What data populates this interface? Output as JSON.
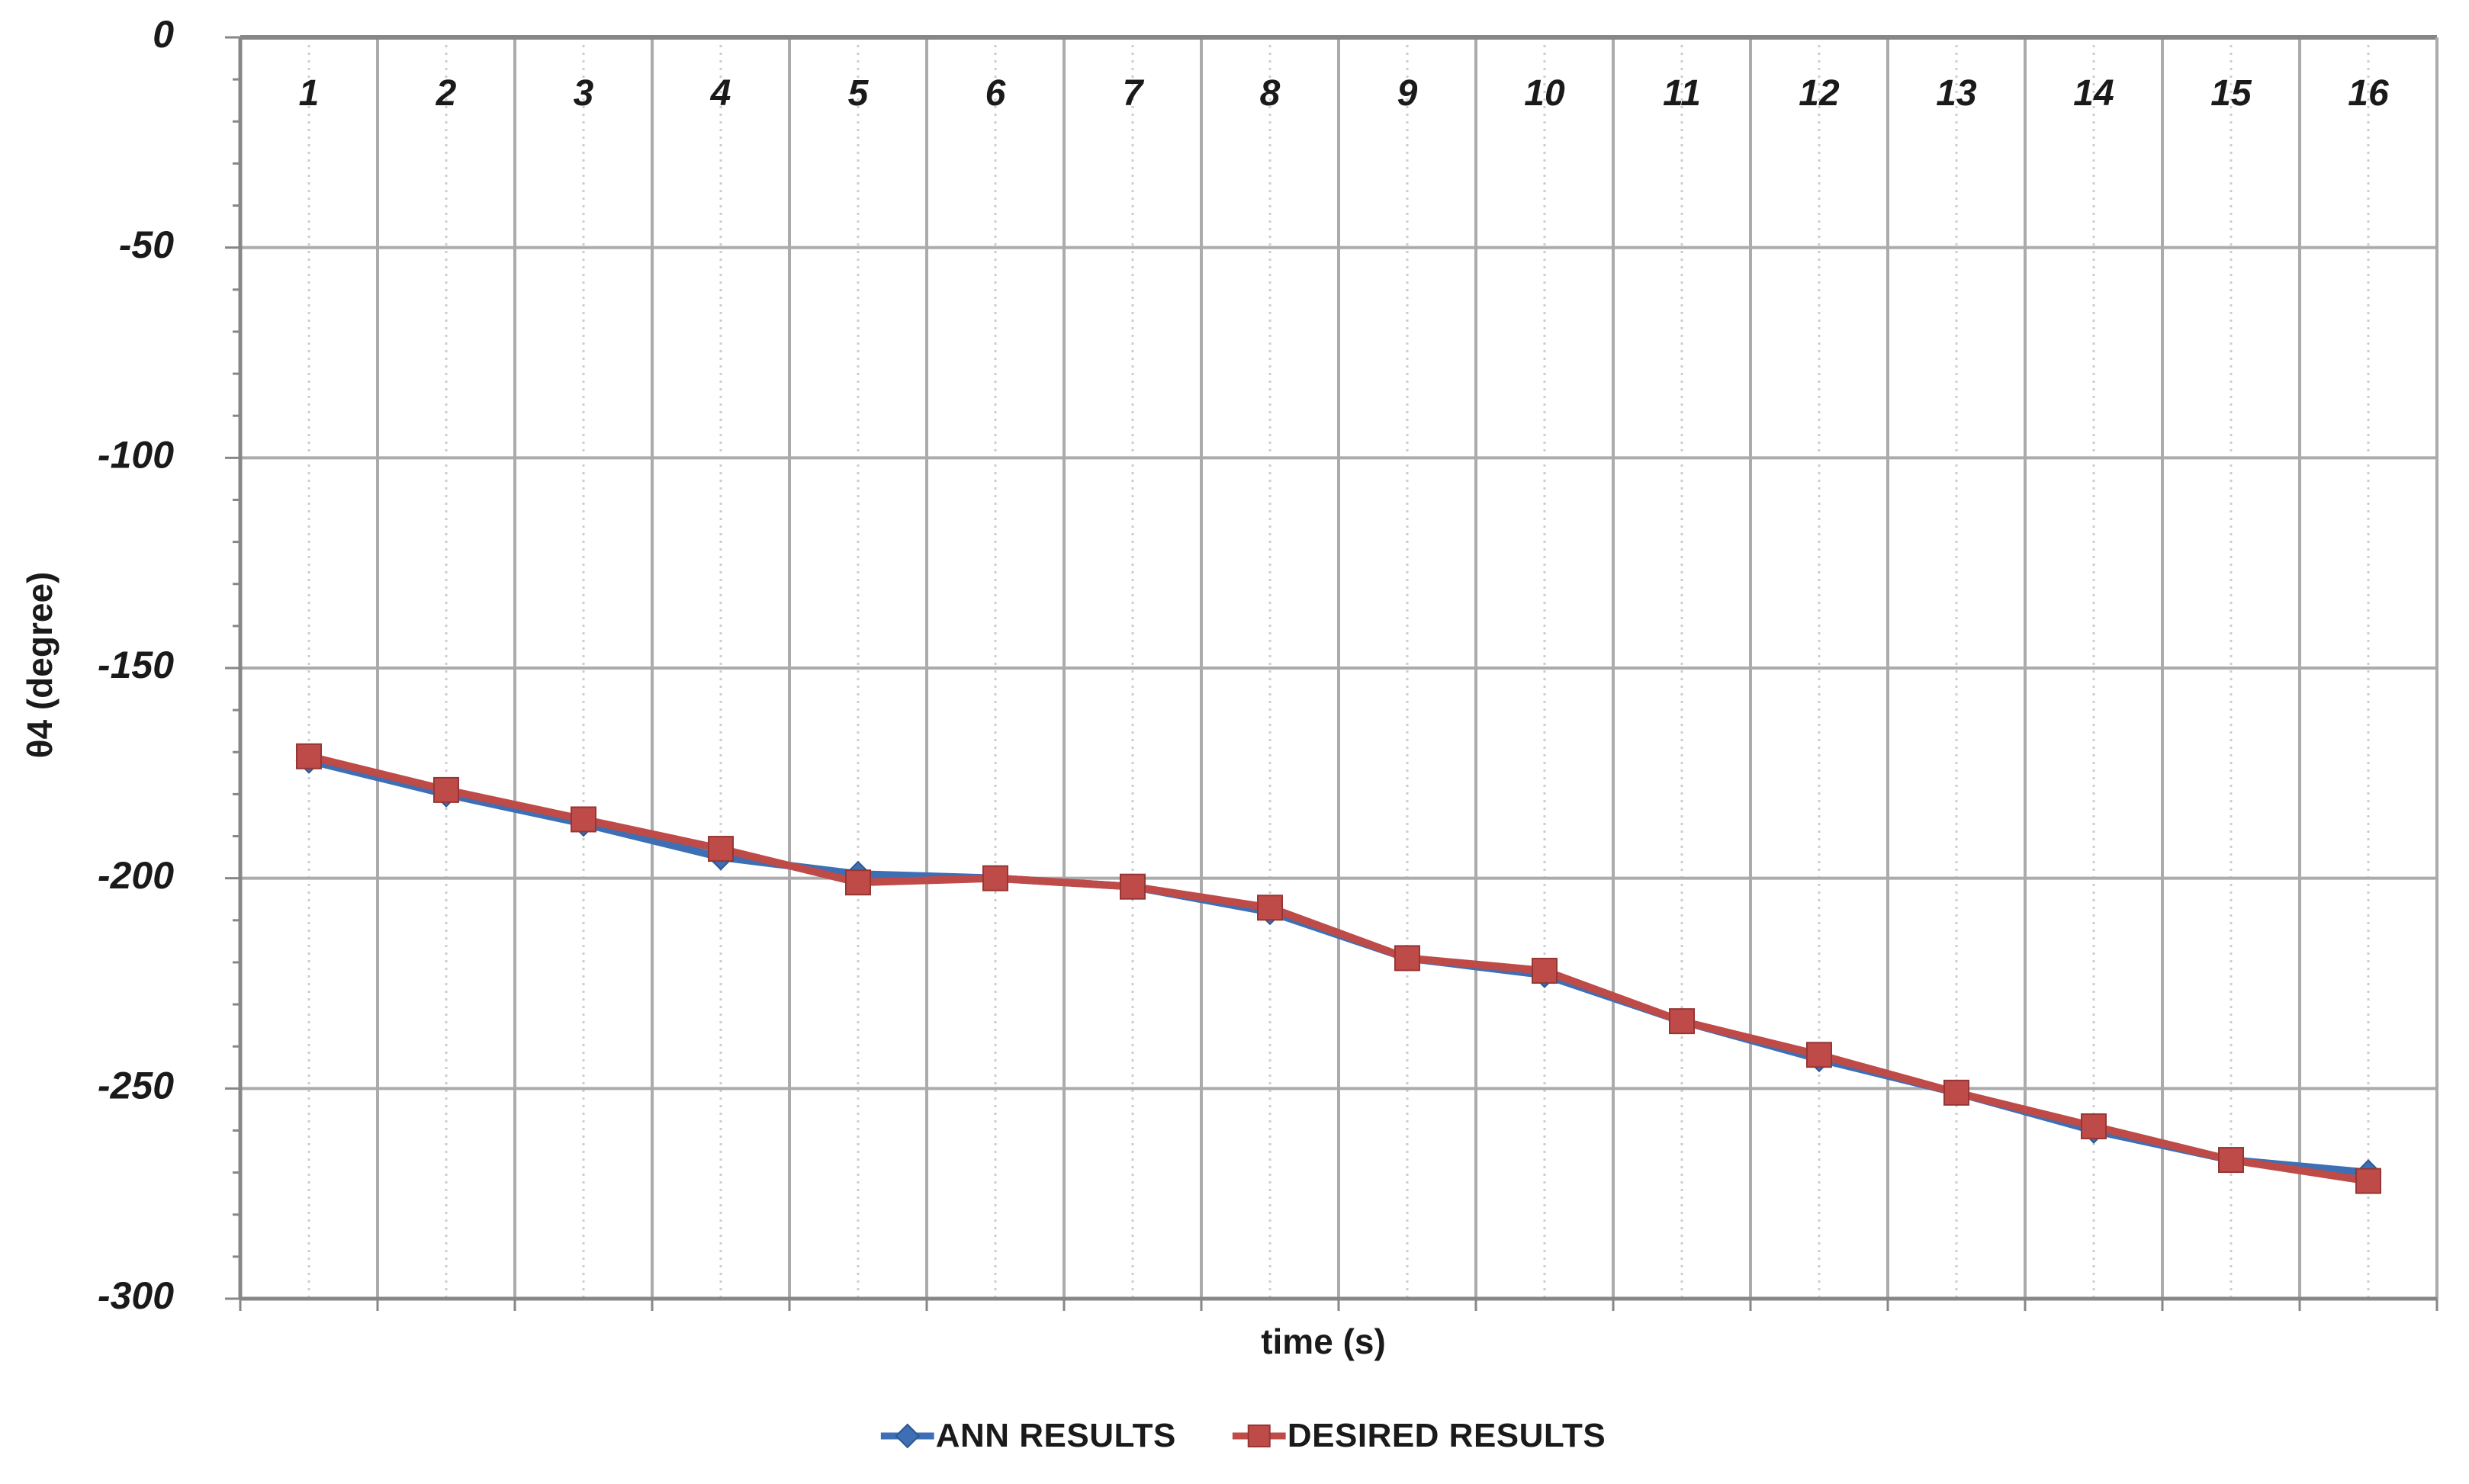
{
  "chart_data": {
    "type": "line",
    "title": "",
    "xlabel": "time (s)",
    "ylabel": "θ4 (degree)",
    "categories": [
      "1",
      "2",
      "3",
      "4",
      "5",
      "6",
      "7",
      "8",
      "9",
      "10",
      "11",
      "12",
      "13",
      "14",
      "15",
      "16"
    ],
    "x": [
      1,
      2,
      3,
      4,
      5,
      6,
      7,
      8,
      9,
      10,
      11,
      12,
      13,
      14,
      15,
      16
    ],
    "y_ticks": [
      "0",
      "-50",
      "-100",
      "-150",
      "-200",
      "-250",
      "-300"
    ],
    "y_tick_values": [
      0,
      -50,
      -100,
      -150,
      -200,
      -250,
      -300
    ],
    "ylim": [
      -300,
      0
    ],
    "grid": {
      "horizontal_major": true,
      "vertical_major": true,
      "vertical_minor_dotted": true
    },
    "legend_position": "bottom-center",
    "series": [
      {
        "name": "ANN RESULTS",
        "marker": "diamond",
        "color": "#3E6FB4",
        "marker_edge": "#2C5791",
        "values": [
          -172,
          -180,
          -187,
          -195,
          -199,
          -200,
          -202,
          -208,
          -219,
          -223,
          -234,
          -243,
          -251,
          -260,
          -267,
          -270
        ]
      },
      {
        "name": "DESIRED RESULTS",
        "marker": "square",
        "color": "#BE4B48",
        "marker_edge": "#963634",
        "values": [
          -171,
          -179,
          -186,
          -193,
          -201,
          -200,
          -202,
          -207,
          -219,
          -222,
          -234,
          -242,
          -251,
          -259,
          -267,
          -272
        ]
      }
    ],
    "colors": {
      "grid_major": "#ABABAB",
      "grid_minor": "#CDCDCD",
      "axis_frame": "#878787",
      "tick_text": "#1a1a1a"
    }
  }
}
